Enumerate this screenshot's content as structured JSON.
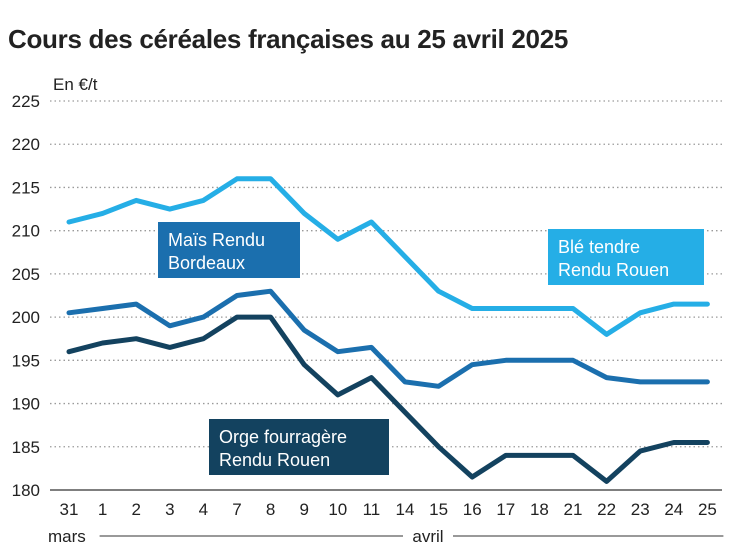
{
  "title": "Cours des céréales françaises au 25 avril 2025",
  "chart_data": {
    "type": "line",
    "title": "Cours des céréales françaises au 25 avril 2025",
    "ylabel": "En €/t",
    "ylim": [
      180,
      225
    ],
    "yticks": [
      180,
      185,
      190,
      195,
      200,
      205,
      210,
      215,
      220,
      225
    ],
    "grid": "horizontal-dotted",
    "categories": [
      "31",
      "1",
      "2",
      "3",
      "4",
      "7",
      "8",
      "9",
      "10",
      "11",
      "14",
      "15",
      "16",
      "17",
      "18",
      "21",
      "22",
      "23",
      "24",
      "25"
    ],
    "months": [
      {
        "label": "mars",
        "start": 0,
        "end": 0
      },
      {
        "label": "avril",
        "start": 1,
        "end": 19
      }
    ],
    "series": [
      {
        "name": "Blé tendre Rendu Rouen",
        "label_lines": [
          "Blé tendre",
          "Rendu Rouen"
        ],
        "color": "#25aee6",
        "values": [
          211,
          212,
          213.5,
          212.5,
          213.5,
          216,
          216,
          212,
          209,
          211,
          207,
          203,
          201,
          201,
          201,
          201,
          198,
          200.5,
          201.5,
          201.5
        ]
      },
      {
        "name": "Maïs Rendu Bordeaux",
        "label_lines": [
          "Maïs Rendu",
          "Bordeaux"
        ],
        "color": "#1b6fae",
        "values": [
          200.5,
          201,
          201.5,
          199,
          200,
          202.5,
          203,
          198.5,
          196,
          196.5,
          192.5,
          192,
          194.5,
          195,
          195,
          195,
          193,
          192.5,
          192.5,
          192.5
        ]
      },
      {
        "name": "Orge fourragère Rendu Rouen",
        "label_lines": [
          "Orge fourragère",
          "Rendu Rouen"
        ],
        "color": "#13425f",
        "values": [
          196,
          197,
          197.5,
          196.5,
          197.5,
          200,
          200,
          194.5,
          191,
          193,
          189,
          185,
          181.5,
          184,
          184,
          184,
          181,
          184.5,
          185.5,
          185.5
        ]
      }
    ]
  }
}
